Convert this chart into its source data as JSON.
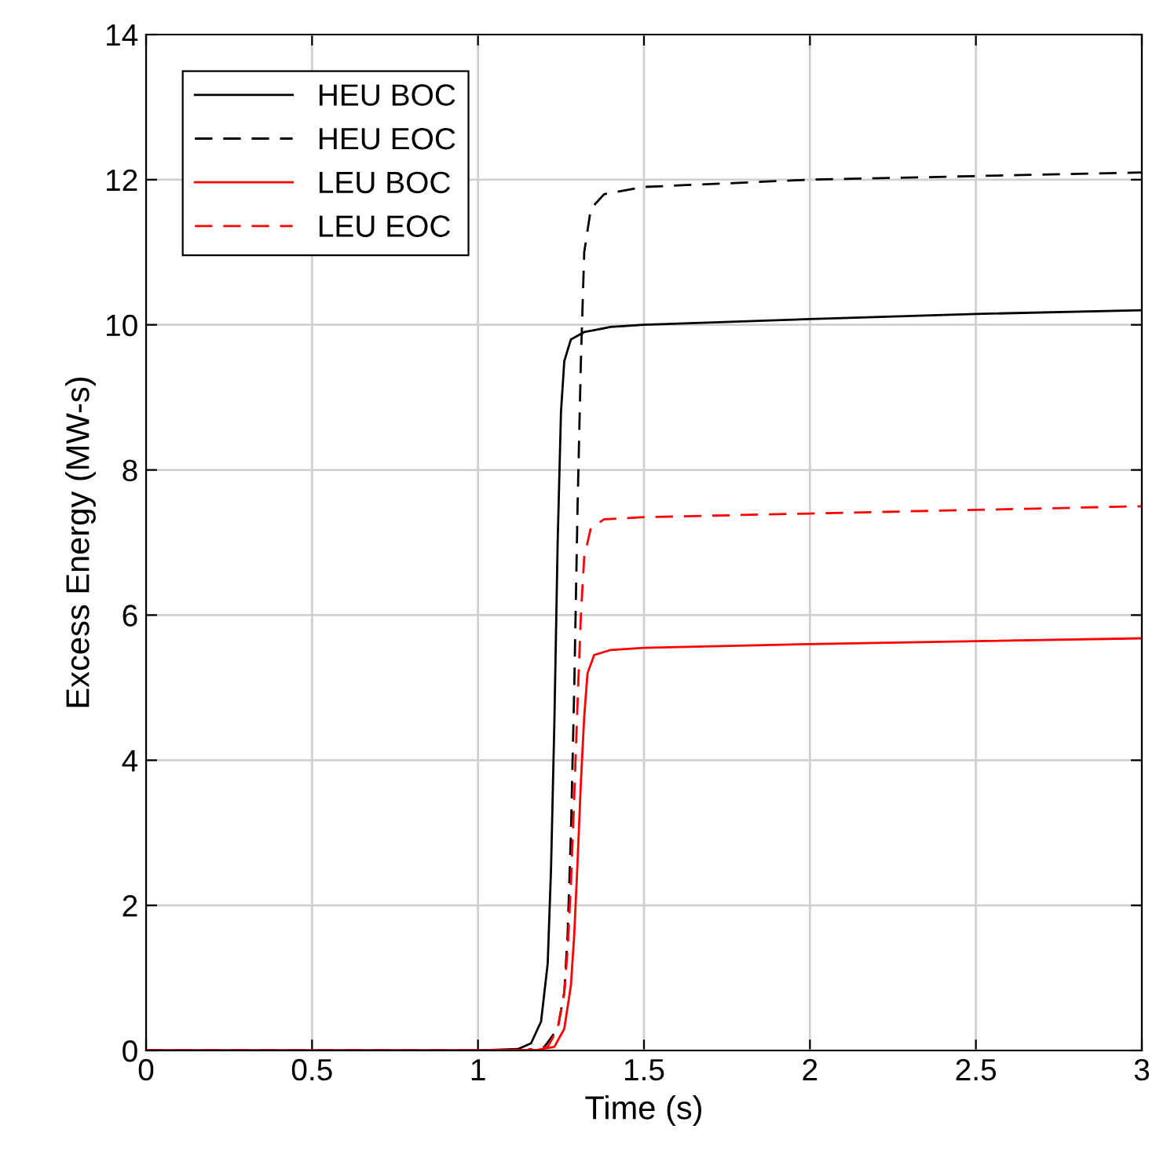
{
  "chart_data": {
    "type": "line",
    "xlabel": "Time (s)",
    "ylabel": "Excess Energy (MW-s)",
    "xlim": [
      0,
      3
    ],
    "ylim": [
      0,
      14
    ],
    "xticks": [
      0,
      0.5,
      1,
      1.5,
      2,
      2.5,
      3
    ],
    "yticks": [
      0,
      2,
      4,
      6,
      8,
      10,
      12,
      14
    ],
    "grid": true,
    "legend": "top left",
    "marker": "none",
    "series": [
      {
        "name": "HEU BOC",
        "color": "#000000",
        "line_style": "solid",
        "x": [
          0,
          1.0,
          1.12,
          1.16,
          1.19,
          1.21,
          1.22,
          1.23,
          1.24,
          1.25,
          1.26,
          1.28,
          1.32,
          1.4,
          1.5,
          2.0,
          2.5,
          3.0
        ],
        "values": [
          0,
          0,
          0.02,
          0.1,
          0.4,
          1.2,
          2.5,
          4.5,
          7.0,
          8.8,
          9.5,
          9.8,
          9.9,
          9.97,
          10.0,
          10.08,
          10.15,
          10.2
        ]
      },
      {
        "name": "HEU EOC",
        "color": "#000000",
        "line_style": "dashed",
        "x": [
          0,
          1.0,
          1.15,
          1.2,
          1.24,
          1.26,
          1.27,
          1.28,
          1.29,
          1.3,
          1.31,
          1.32,
          1.34,
          1.38,
          1.5,
          2.0,
          2.5,
          3.0
        ],
        "values": [
          0,
          0,
          0.01,
          0.05,
          0.3,
          0.8,
          1.6,
          3.0,
          5.0,
          7.5,
          9.5,
          11.0,
          11.6,
          11.8,
          11.9,
          12.0,
          12.05,
          12.1
        ]
      },
      {
        "name": "LEU BOC",
        "color": "#ff0000",
        "line_style": "solid",
        "x": [
          0,
          1.0,
          1.18,
          1.23,
          1.26,
          1.28,
          1.29,
          1.3,
          1.31,
          1.32,
          1.33,
          1.35,
          1.4,
          1.5,
          2.0,
          2.5,
          3.0
        ],
        "values": [
          0,
          0,
          0.01,
          0.05,
          0.3,
          0.9,
          1.6,
          2.6,
          3.7,
          4.6,
          5.2,
          5.45,
          5.52,
          5.55,
          5.6,
          5.64,
          5.68
        ]
      },
      {
        "name": "LEU EOC",
        "color": "#ff0000",
        "line_style": "dashed",
        "x": [
          0,
          1.0,
          1.15,
          1.21,
          1.24,
          1.26,
          1.27,
          1.28,
          1.29,
          1.3,
          1.31,
          1.32,
          1.34,
          1.38,
          1.5,
          2.0,
          2.5,
          3.0
        ],
        "values": [
          0,
          0,
          0.01,
          0.05,
          0.3,
          0.8,
          1.4,
          2.3,
          3.5,
          4.8,
          6.0,
          6.8,
          7.2,
          7.32,
          7.35,
          7.4,
          7.45,
          7.5
        ]
      }
    ]
  }
}
